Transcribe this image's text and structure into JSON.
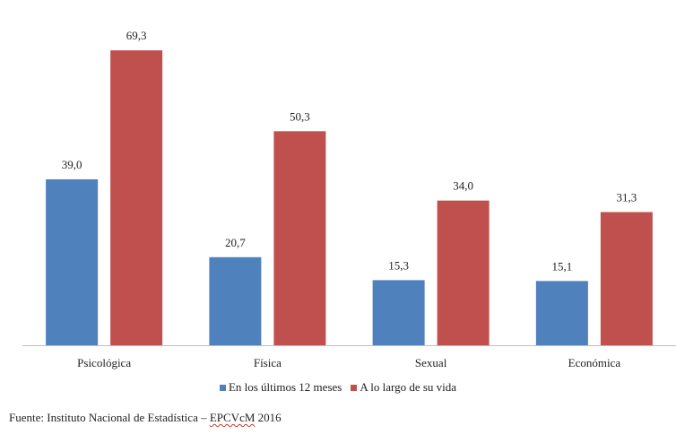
{
  "chart_data": {
    "type": "bar",
    "categories": [
      "Psicológica",
      "Física",
      "Sexual",
      "Económica"
    ],
    "series": [
      {
        "name": "En los últimos 12 meses",
        "values": [
          39.0,
          20.7,
          15.3,
          15.1
        ],
        "labels": [
          "39,0",
          "20,7",
          "15,3",
          "15,1"
        ],
        "color": "#4f81bd"
      },
      {
        "name": "A lo largo de su vida",
        "values": [
          69.3,
          50.3,
          34.0,
          31.3
        ],
        "labels": [
          "69,3",
          "50,3",
          "34,0",
          "31,3"
        ],
        "color": "#c0504d"
      }
    ],
    "ylim": [
      0,
      70
    ],
    "grid": false,
    "legend_position": "bottom"
  },
  "source": {
    "prefix": "Fuente: Instituto Nacional de Estadística – ",
    "survey": "EPCVcM",
    "year": " 2016"
  }
}
